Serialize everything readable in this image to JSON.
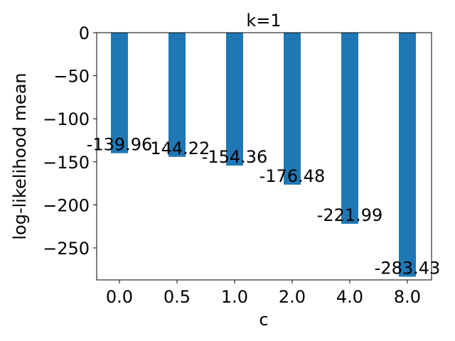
{
  "chart_data": {
    "type": "bar",
    "title": "k=1",
    "xlabel": "c",
    "ylabel": "log-likelihood mean",
    "categories": [
      "0.0",
      "0.5",
      "1.0",
      "2.0",
      "4.0",
      "8.0"
    ],
    "values": [
      -139.96,
      -144.22,
      -154.36,
      -176.48,
      -221.99,
      -283.43
    ],
    "data_labels": [
      "-139.96",
      "-144.22",
      "-154.36",
      "-176.48",
      "-221.99",
      "-283.43"
    ],
    "ylim": [
      -290,
      0
    ],
    "yticks": [
      0,
      -50,
      -100,
      -150,
      -200,
      -250
    ],
    "ytick_labels": [
      "0",
      "−50",
      "−100",
      "−150",
      "−200",
      "−250"
    ],
    "bar_color": "#1f77b4",
    "grid": false,
    "legend": "none"
  }
}
